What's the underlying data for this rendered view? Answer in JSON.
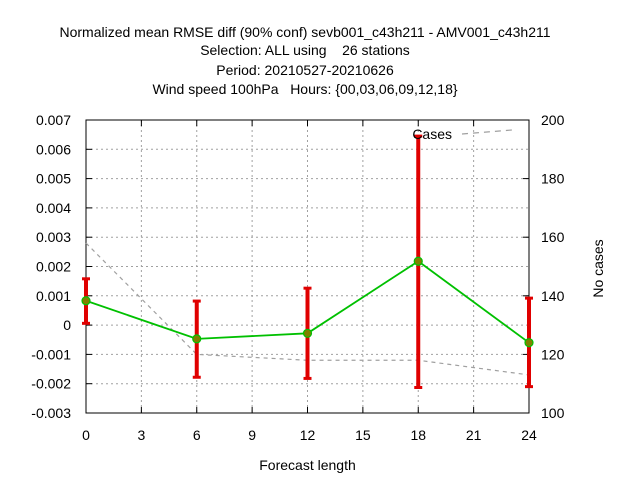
{
  "chart_data": {
    "type": "line",
    "title_lines": [
      "Normalized mean RMSE diff (90% conf) sevb001_c43h211 - AMV001_c43h211",
      "Selection: ALL using    26 stations",
      "Period: 20210527-20210626",
      "Wind speed 100hPa   Hours: {00,03,06,09,12,18}"
    ],
    "xlabel": "Forecast length",
    "ylabel_right": "No cases",
    "xlim": [
      0,
      24
    ],
    "x_ticks": [
      "0",
      "3",
      "6",
      "9",
      "12",
      "15",
      "18",
      "21",
      "24"
    ],
    "x_tick_values": [
      0,
      3,
      6,
      9,
      12,
      15,
      18,
      21,
      24
    ],
    "ylim": [
      -0.003,
      0.007
    ],
    "y_ticks": [
      "-0.003",
      "-0.002",
      "-0.001",
      "0",
      "0.001",
      "0.002",
      "0.003",
      "0.004",
      "0.005",
      "0.006",
      "0.007"
    ],
    "y_tick_values": [
      -0.003,
      -0.002,
      -0.001,
      0,
      0.001,
      0.002,
      0.003,
      0.004,
      0.005,
      0.006,
      0.007
    ],
    "y2lim": [
      100,
      200
    ],
    "y2_ticks": [
      "100",
      "120",
      "140",
      "160",
      "180",
      "200"
    ],
    "y2_tick_values": [
      100,
      120,
      140,
      160,
      180,
      200
    ],
    "grid": true,
    "legend": {
      "position": "top-right",
      "entries": [
        "Cases"
      ]
    },
    "colors": {
      "main": "#00c000",
      "error": "#e00000",
      "marker": "#808000",
      "cases": "#a0a0a0"
    },
    "series": [
      {
        "x": [
          0,
          6,
          12,
          18,
          24
        ],
        "y": [
          0.00083,
          -0.00047,
          -0.00028,
          0.00218,
          -0.0006
        ],
        "err_low": [
          6e-05,
          -0.00178,
          -0.00182,
          -0.00213,
          -0.0021
        ],
        "err_high": [
          0.00158,
          0.00082,
          0.00126,
          0.00645,
          0.00092
        ]
      },
      {
        "name": "Cases",
        "axis": "right",
        "x": [
          0,
          6,
          12,
          18,
          24
        ],
        "y": [
          158,
          120,
          118,
          118,
          113
        ]
      }
    ]
  }
}
